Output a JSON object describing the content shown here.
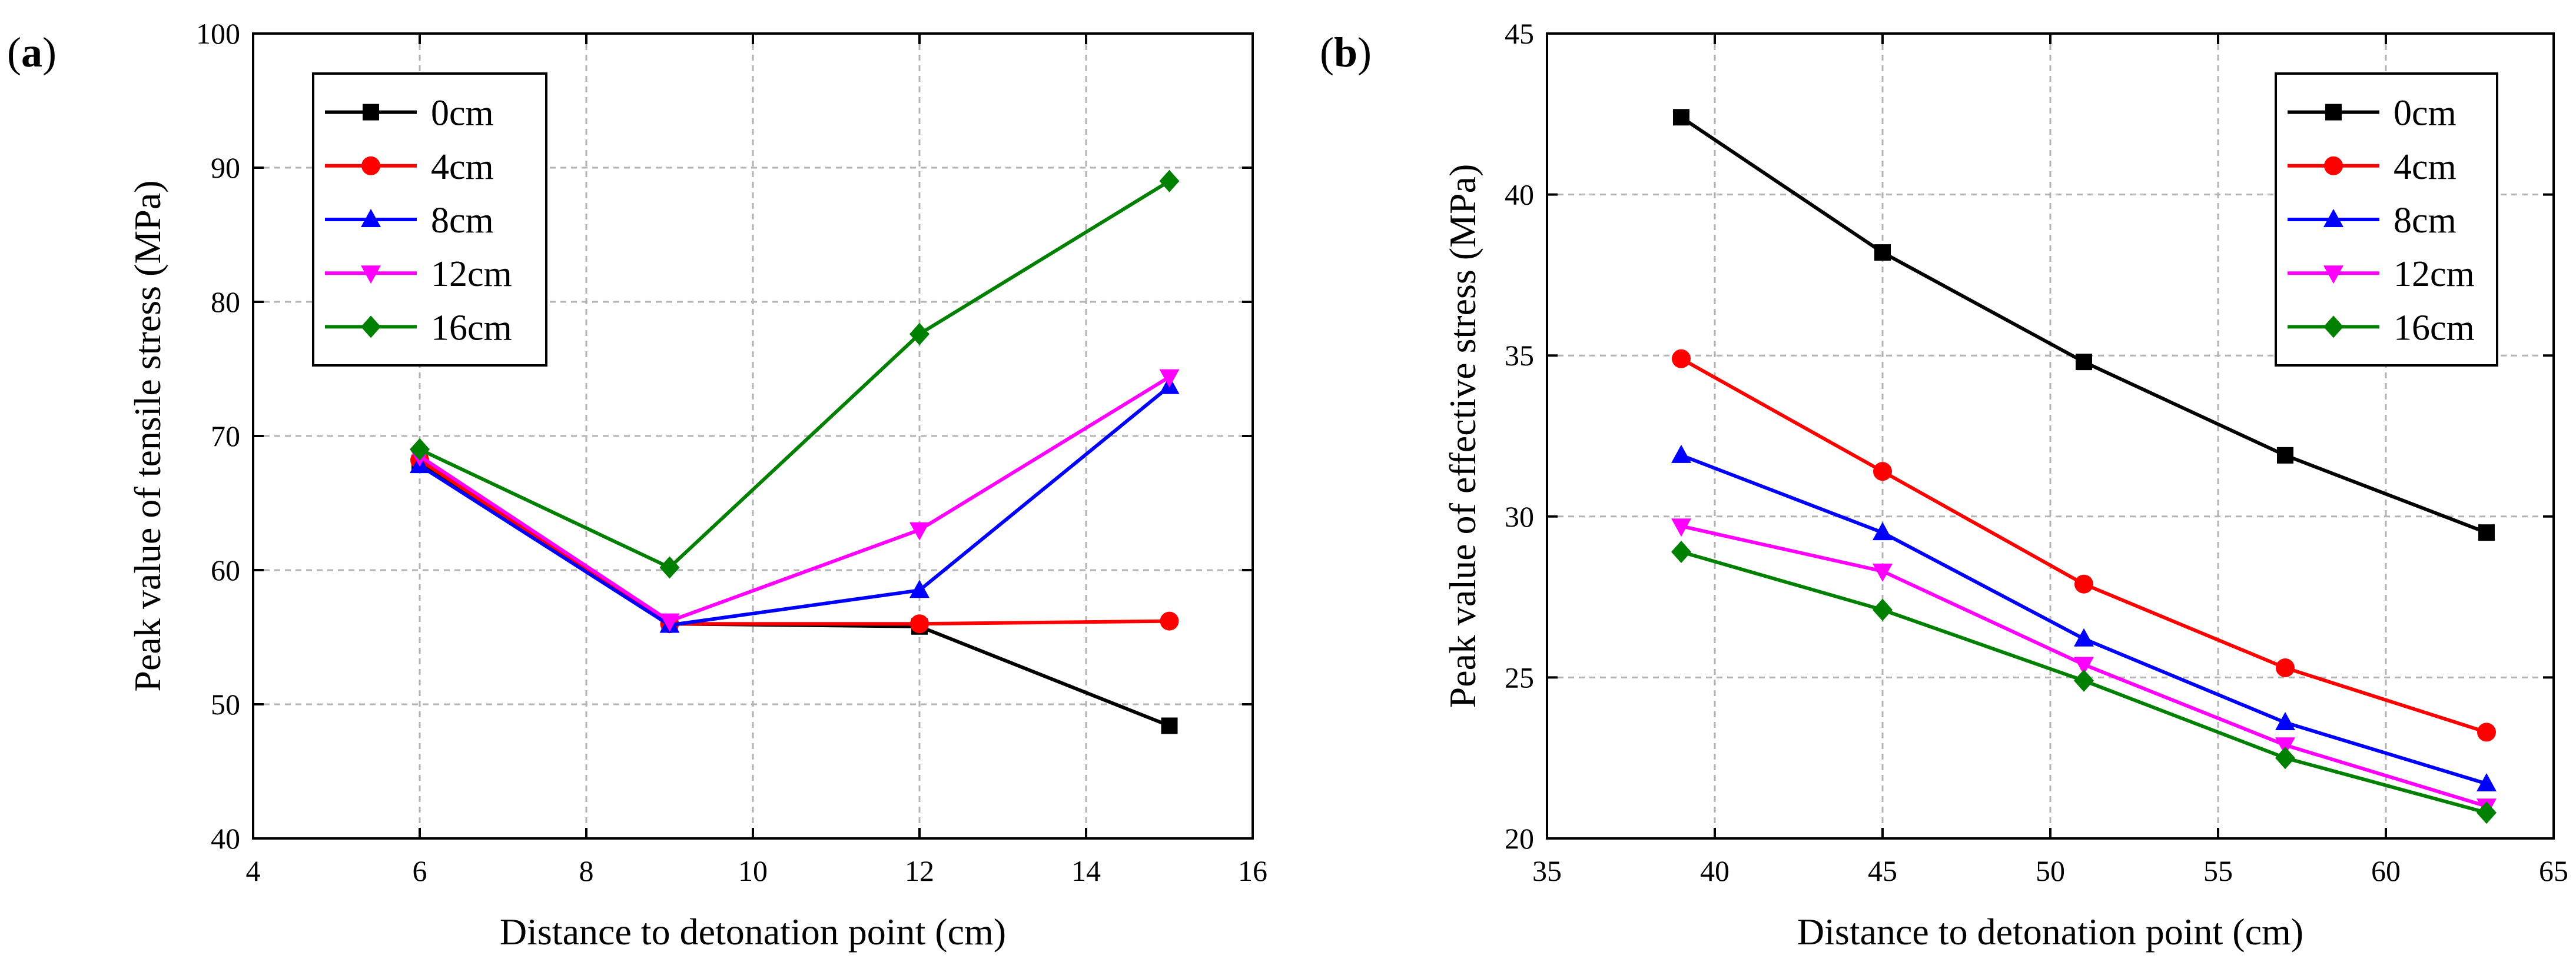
{
  "chart_data": [
    {
      "type": "line",
      "panel_label": "(a)",
      "title": "",
      "xlabel": "Distance to detonation point (cm)",
      "ylabel": "Peak value of tensile stress (MPa)",
      "xlim": [
        4,
        16
      ],
      "ylim": [
        40,
        100
      ],
      "xticks": [
        "4",
        "6",
        "8",
        "10",
        "12",
        "14",
        "16"
      ],
      "yticks": [
        "40",
        "50",
        "60",
        "70",
        "80",
        "90",
        "100"
      ],
      "grid": true,
      "legend_position": "top-left",
      "x": [
        6,
        9,
        12,
        15
      ],
      "series": [
        {
          "name": "0cm",
          "color": "#000000",
          "marker": "square",
          "values": [
            68.0,
            56.0,
            55.8,
            48.4
          ]
        },
        {
          "name": "4cm",
          "color": "#ff0000",
          "marker": "circle",
          "values": [
            68.2,
            56.0,
            56.0,
            56.2
          ]
        },
        {
          "name": "8cm",
          "color": "#0000ff",
          "marker": "triangle-up",
          "values": [
            67.8,
            55.9,
            58.5,
            73.7
          ]
        },
        {
          "name": "12cm",
          "color": "#ff00ff",
          "marker": "triangle-down",
          "values": [
            68.5,
            56.2,
            63.0,
            74.4
          ]
        },
        {
          "name": "16cm",
          "color": "#008000",
          "marker": "diamond",
          "values": [
            69.0,
            60.2,
            77.6,
            89.0
          ]
        }
      ]
    },
    {
      "type": "line",
      "panel_label": "(b)",
      "title": "",
      "xlabel": "Distance to detonation point (cm)",
      "ylabel": "Peak value of effective stress (MPa)",
      "xlim": [
        35,
        65
      ],
      "ylim": [
        20,
        45
      ],
      "xticks": [
        "35",
        "40",
        "45",
        "50",
        "55",
        "60",
        "65"
      ],
      "yticks": [
        "20",
        "25",
        "30",
        "35",
        "40",
        "45"
      ],
      "grid": true,
      "legend_position": "top-right",
      "x": [
        39,
        45,
        51,
        57,
        63
      ],
      "series": [
        {
          "name": "0cm",
          "color": "#000000",
          "marker": "square",
          "values": [
            42.4,
            38.2,
            34.8,
            31.9,
            29.5
          ]
        },
        {
          "name": "4cm",
          "color": "#ff0000",
          "marker": "circle",
          "values": [
            34.9,
            31.4,
            27.9,
            25.3,
            23.3
          ]
        },
        {
          "name": "8cm",
          "color": "#0000ff",
          "marker": "triangle-up",
          "values": [
            31.9,
            29.5,
            26.2,
            23.6,
            21.7
          ]
        },
        {
          "name": "12cm",
          "color": "#ff00ff",
          "marker": "triangle-down",
          "values": [
            29.7,
            28.3,
            25.4,
            22.9,
            21.0
          ]
        },
        {
          "name": "16cm",
          "color": "#008000",
          "marker": "diamond",
          "values": [
            28.9,
            27.1,
            24.9,
            22.5,
            20.8
          ]
        }
      ]
    }
  ]
}
